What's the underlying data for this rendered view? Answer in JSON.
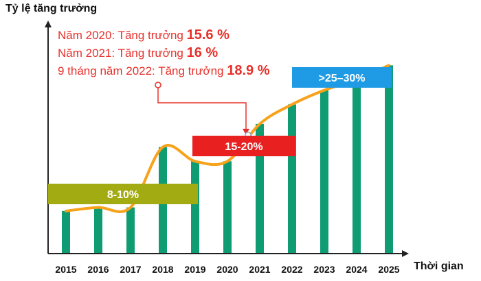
{
  "chart_data": {
    "type": "bar",
    "title": "",
    "ylabel": "Tỷ lệ tăng trưởng",
    "xlabel": "Thời gian",
    "categories": [
      "2015",
      "2016",
      "2017",
      "2018",
      "2019",
      "2020",
      "2021",
      "2022",
      "2023",
      "2024",
      "2025"
    ],
    "values": [
      2.4,
      2.6,
      2.6,
      6.0,
      5.2,
      5.2,
      7.3,
      8.4,
      9.2,
      9.8,
      10.6
    ],
    "grid": false,
    "line_overlay": true,
    "annotations": [
      {
        "prefix": "Năm 2020: Tăng trưởng ",
        "value": "15.6 %"
      },
      {
        "prefix": "Năm 2021: Tăng trưởng ",
        "value": "16 %"
      },
      {
        "prefix": "9 tháng năm 2022: Tăng trưởng ",
        "value": "18.9 %"
      }
    ],
    "ranges": [
      {
        "label": "8-10%",
        "from": "2015",
        "to": "2019",
        "color": "#a3ab12"
      },
      {
        "label": "15-20%",
        "from": "2019",
        "to": "2022",
        "color": "#e8201f"
      },
      {
        "label": ">25–30%",
        "from": "2022",
        "to": "2025",
        "color": "#1e9be4"
      }
    ]
  },
  "colors": {
    "bar": "#0f9c73",
    "line": "#f7a21a",
    "axis": "#222222",
    "note_text": "#e8302a",
    "connector": "#e8302a"
  }
}
